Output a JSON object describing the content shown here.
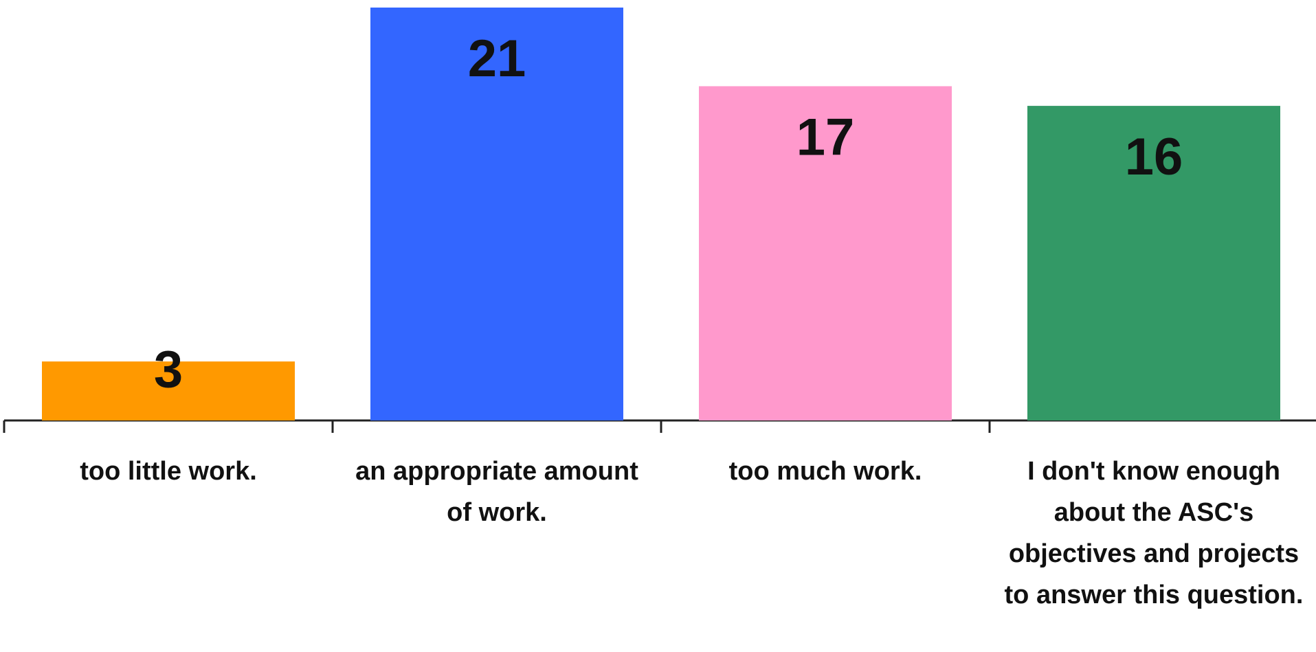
{
  "chart_data": {
    "type": "bar",
    "categories": [
      "too little work.",
      "an appropriate amount of work.",
      "too much work.",
      "I don't know enough about the ASC's objectives and projects to answer this question."
    ],
    "values": [
      3,
      21,
      17,
      16
    ],
    "colors": [
      "#ff9900",
      "#3366ff",
      "#ff99cc",
      "#339966"
    ]
  }
}
